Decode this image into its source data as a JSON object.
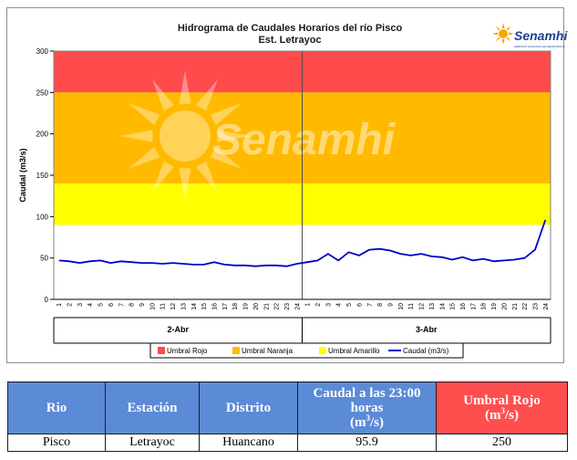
{
  "chart_data": {
    "type": "line",
    "title": "Hidrograma de Caudales Horarios del río Pisco",
    "subtitle": "Est. Letrayoc",
    "ylabel": "Caudal  (m3/s)",
    "xlabel": "",
    "ylim": [
      0,
      300
    ],
    "yticks": [
      0,
      50,
      100,
      150,
      200,
      250,
      300
    ],
    "x_hour_labels": [
      "1",
      "2",
      "3",
      "4",
      "5",
      "6",
      "7",
      "8",
      "9",
      "10",
      "11",
      "12",
      "13",
      "14",
      "15",
      "16",
      "17",
      "18",
      "19",
      "20",
      "21",
      "22",
      "23",
      "24",
      "1",
      "2",
      "3",
      "4",
      "5",
      "6",
      "7",
      "8",
      "9",
      "10",
      "11",
      "12",
      "13",
      "14",
      "15",
      "16",
      "17",
      "18",
      "19",
      "20",
      "21",
      "22",
      "23",
      "24"
    ],
    "day_labels": [
      "2-Abr",
      "3-Abr"
    ],
    "bands": [
      {
        "name": "Umbral Rojo",
        "from": 250,
        "to": 300,
        "color": "#ff4b4b"
      },
      {
        "name": "Umbral Naranja",
        "from": 140,
        "to": 250,
        "color": "#ffba00"
      },
      {
        "name": "Umbral Amarillo",
        "from": 90,
        "to": 140,
        "color": "#ffff00"
      }
    ],
    "series": [
      {
        "name": "Caudal (m3/s)",
        "color": "#0000c8",
        "values": [
          47,
          46,
          44,
          46,
          47,
          44,
          46,
          45,
          44,
          44,
          43,
          44,
          43,
          42,
          42,
          45,
          42,
          41,
          41,
          40,
          41,
          41,
          40,
          43,
          45,
          47,
          55,
          47,
          57,
          53,
          60,
          61,
          59,
          55,
          53,
          55,
          52,
          51,
          48,
          51,
          47,
          49,
          46,
          47,
          48,
          50,
          60,
          96
        ]
      }
    ],
    "legend_position": "bottom",
    "grid": false,
    "watermark": "Senamhi"
  },
  "logo": {
    "name": "Senamhi",
    "tagline": "SERVICIO NACIONAL DE METEOROLOGIA E HIDROLOGIA DEL PERU"
  },
  "table": {
    "headers": [
      "Rio",
      "Estación",
      "Distrito",
      "Caudal a las 23:00 horas",
      "Umbral Rojo"
    ],
    "header_units": {
      "caudal": "(m",
      "umbral": "(m"
    },
    "row": [
      "Pisco",
      "Letrayoc",
      "Huancano",
      "95.9",
      "250"
    ]
  }
}
